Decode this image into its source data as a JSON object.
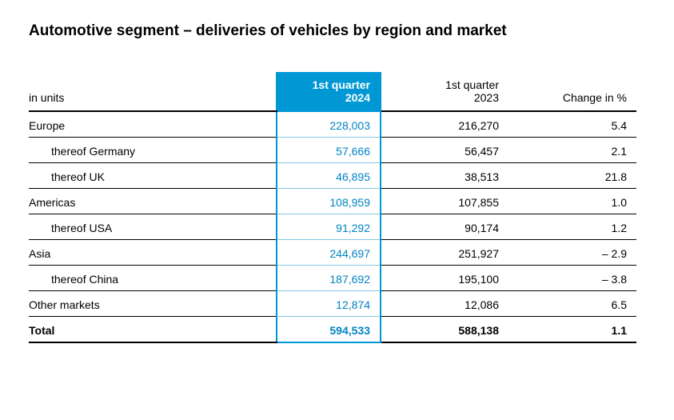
{
  "title": "Automotive segment – deliveries of vehicles by region and market",
  "unitsLabel": "in units",
  "columns": {
    "c2024_line1": "1st quarter",
    "c2024_line2": "2024",
    "c2023_line1": "1st quarter",
    "c2023_line2": "2023",
    "change": "Change in %"
  },
  "rows": [
    {
      "label": "Europe",
      "indent": false,
      "v2024": "228,003",
      "v2023": "216,270",
      "chg": "5.4"
    },
    {
      "label": "thereof Germany",
      "indent": true,
      "v2024": "57,666",
      "v2023": "56,457",
      "chg": "2.1"
    },
    {
      "label": "thereof UK",
      "indent": true,
      "v2024": "46,895",
      "v2023": "38,513",
      "chg": "21.8"
    },
    {
      "label": "Americas",
      "indent": false,
      "v2024": "108,959",
      "v2023": "107,855",
      "chg": "1.0"
    },
    {
      "label": "thereof USA",
      "indent": true,
      "v2024": "91,292",
      "v2023": "90,174",
      "chg": "1.2"
    },
    {
      "label": "Asia",
      "indent": false,
      "v2024": "244,697",
      "v2023": "251,927",
      "chg": "– 2.9"
    },
    {
      "label": "thereof China",
      "indent": true,
      "v2024": "187,692",
      "v2023": "195,100",
      "chg": "– 3.8"
    },
    {
      "label": "Other markets",
      "indent": false,
      "v2024": "12,874",
      "v2023": "12,086",
      "chg": "6.5"
    }
  ],
  "total": {
    "label": "Total",
    "v2024": "594,533",
    "v2023": "588,138",
    "chg": "1.1"
  },
  "colors": {
    "accent": "#0098d4",
    "accentText": "#0083c1",
    "accentLight": "#7fc9e6",
    "text": "#000000",
    "background": "#ffffff"
  }
}
